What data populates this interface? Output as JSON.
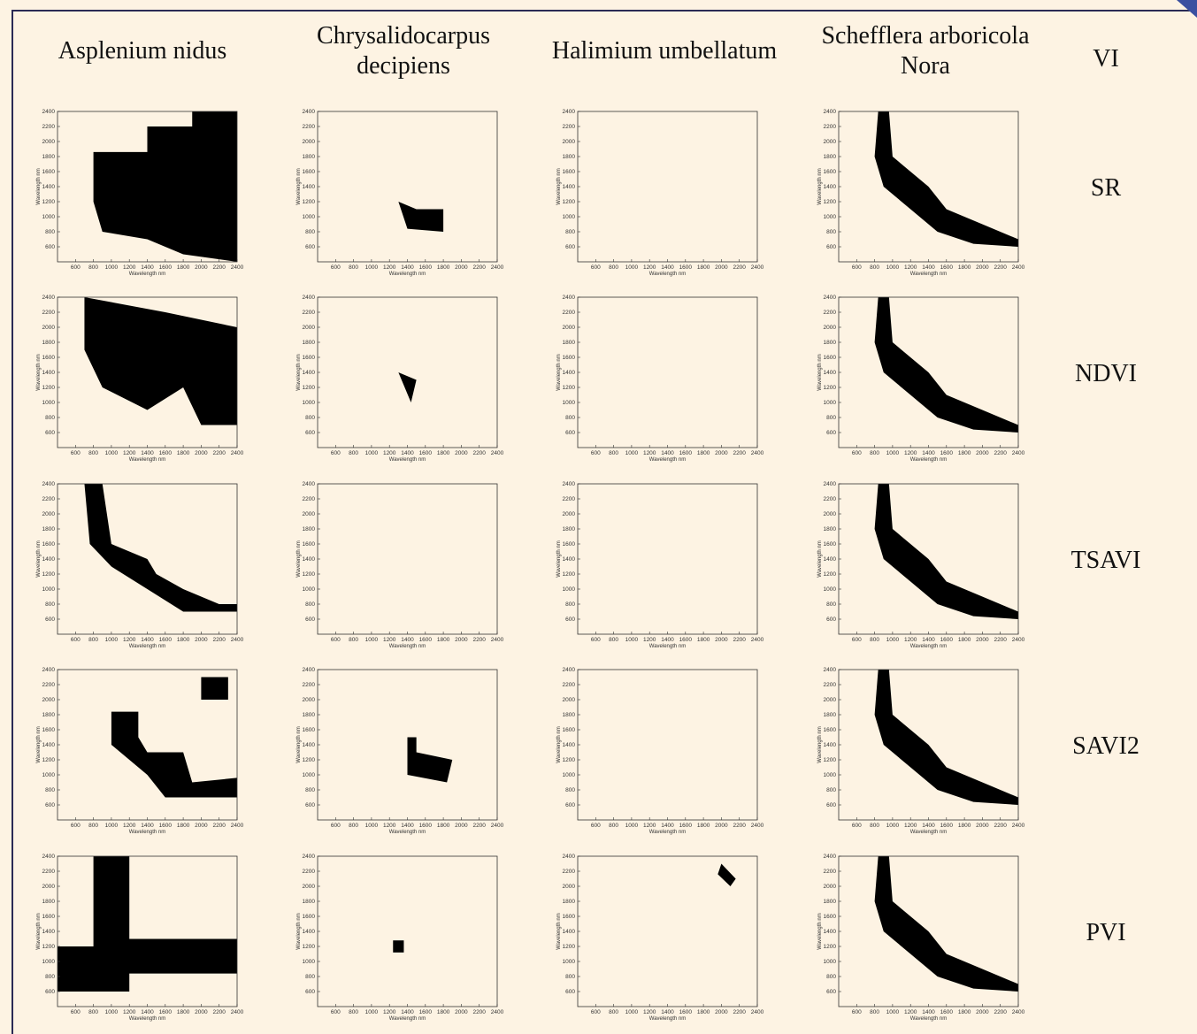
{
  "columns": [
    "Asplenium nidus",
    "Chrysalidocarpus\ndecipiens",
    "Halimium umbellatum",
    "Schefflera arboricola\nNora"
  ],
  "row_header": "VI",
  "rows": [
    "SR",
    "NDVI",
    "TSAVI",
    "SAVI2",
    "PVI"
  ],
  "panel": {
    "x_label": "Wavelength nm",
    "y_label": "Wavelength nm",
    "xlim": [
      400,
      2400
    ],
    "ylim": [
      400,
      2400
    ],
    "xticks": [
      600,
      800,
      1000,
      1200,
      1400,
      1600,
      1800,
      2000,
      2200,
      2400
    ],
    "yticks": [
      600,
      800,
      1000,
      1200,
      1400,
      1600,
      1800,
      2000,
      2200,
      2400
    ]
  }
}
